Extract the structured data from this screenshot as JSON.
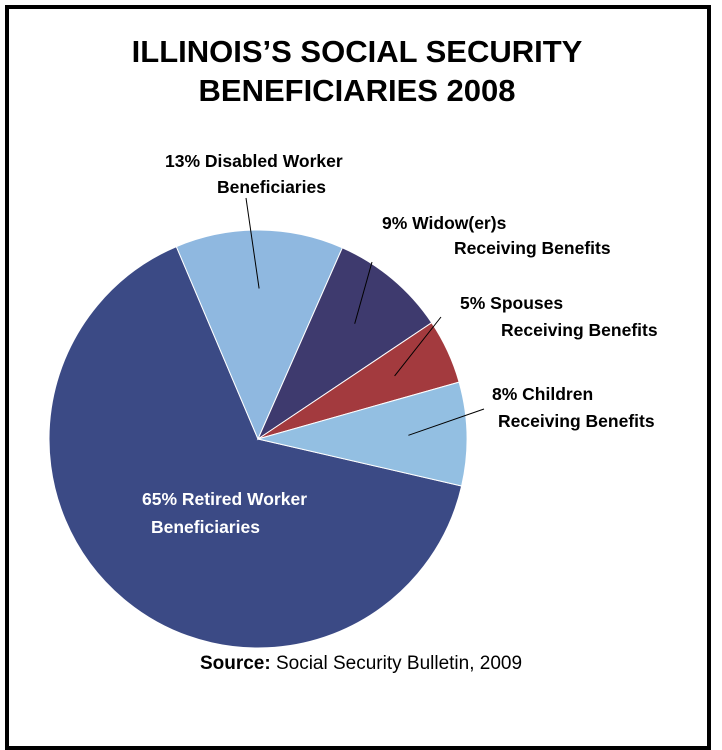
{
  "chart_data": {
    "type": "pie",
    "title_lines": [
      "ILLINOIS’S SOCIAL SECURITY",
      "BENEFICIARIES 2008"
    ],
    "slices": [
      {
        "percent": 65,
        "label_lines": [
          "65% Retired Worker",
          "Beneficiaries"
        ],
        "color": "#3b4a85"
      },
      {
        "percent": 13,
        "label_lines": [
          "13% Disabled Worker",
          "Beneficiaries"
        ],
        "color": "#8fb8e0"
      },
      {
        "percent": 9,
        "label_lines": [
          "9% Widow(er)s",
          "Receiving Benefits"
        ],
        "color": "#3e3a6e"
      },
      {
        "percent": 5,
        "label_lines": [
          "5% Spouses",
          "Receiving Benefits"
        ],
        "color": "#a33a3e"
      },
      {
        "percent": 8,
        "label_lines": [
          "8% Children",
          "Receiving Benefits"
        ],
        "color": "#93bfe2"
      }
    ],
    "source_label": "Source:",
    "source_text": " Social Security Bulletin, 2009"
  }
}
